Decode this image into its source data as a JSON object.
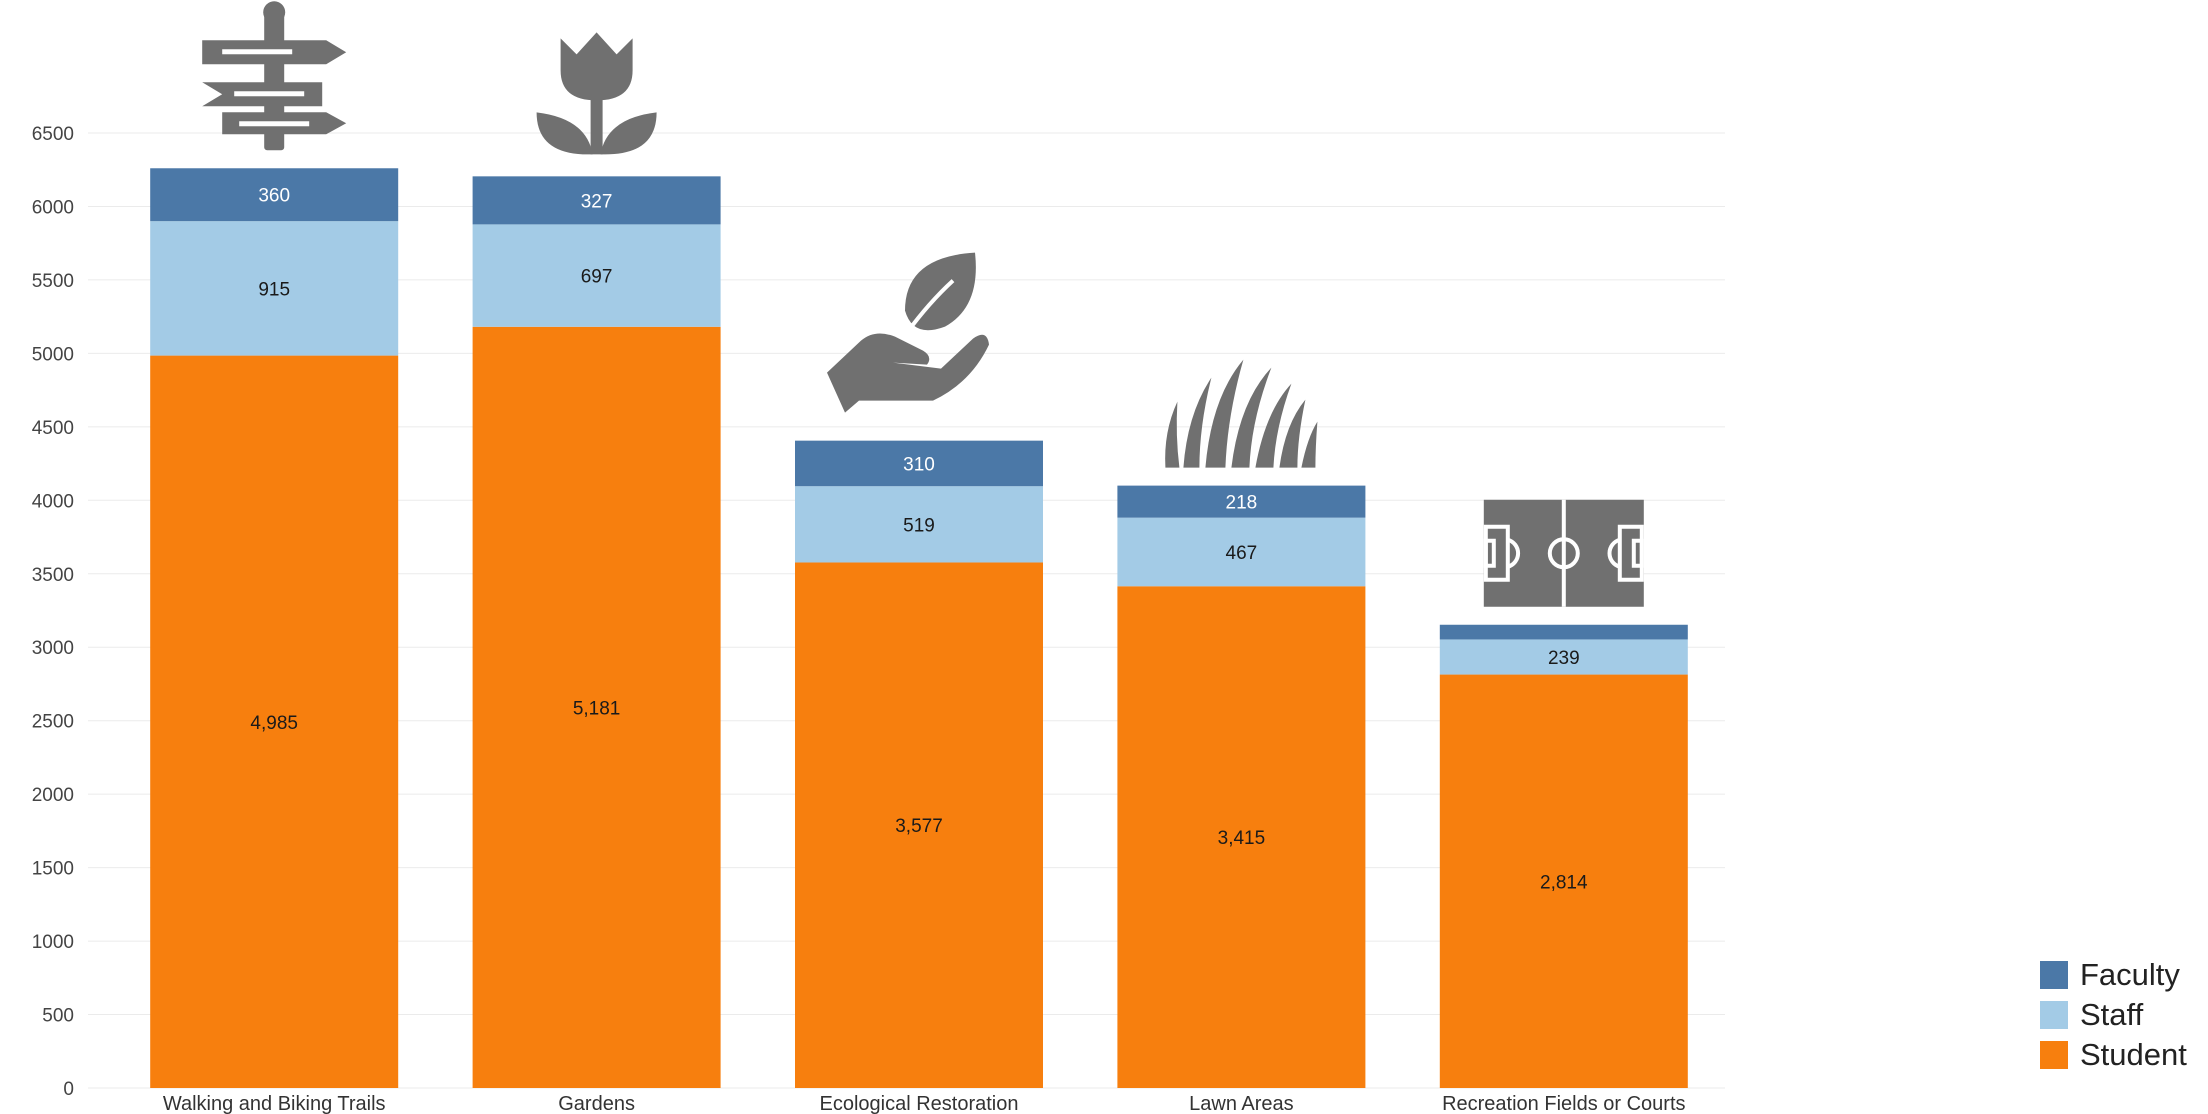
{
  "chart_data": {
    "type": "bar",
    "stacked": true,
    "title": "",
    "xlabel": "",
    "ylabel": "",
    "ylim": [
      0,
      6500
    ],
    "yticks": [
      0,
      500,
      1000,
      1500,
      2000,
      2500,
      3000,
      3500,
      4000,
      4500,
      5000,
      5500,
      6000,
      6500
    ],
    "grid": true,
    "legend_position": "bottom-right",
    "categories": [
      "Walking and Biking Trails",
      "Gardens",
      "Ecological Restoration",
      "Lawn Areas",
      "Recreation Fields or Courts"
    ],
    "category_icons": [
      "signpost-icon",
      "tulip-icon",
      "hand-leaf-icon",
      "grass-icon",
      "soccer-field-icon"
    ],
    "series": [
      {
        "name": "Student",
        "color": "#f77f0e",
        "values": [
          4985,
          5181,
          3577,
          3415,
          2814
        ],
        "labels": [
          "4,985",
          "5,181",
          "3,577",
          "3,415",
          "2,814"
        ]
      },
      {
        "name": "Staff",
        "color": "#a3cbe6",
        "values": [
          915,
          697,
          519,
          467,
          239
        ],
        "labels": [
          "915",
          "697",
          "519",
          "467",
          "239"
        ]
      },
      {
        "name": "Faculty",
        "color": "#4b78a7",
        "values": [
          360,
          327,
          310,
          218,
          100
        ],
        "labels": [
          "360",
          "327",
          "310",
          "218",
          ""
        ]
      }
    ]
  },
  "legend": {
    "items": [
      {
        "label": "Faculty",
        "color": "#4b78a7"
      },
      {
        "label": "Staff",
        "color": "#a3cbe6"
      },
      {
        "label": "Student",
        "color": "#f77f0e"
      }
    ]
  }
}
